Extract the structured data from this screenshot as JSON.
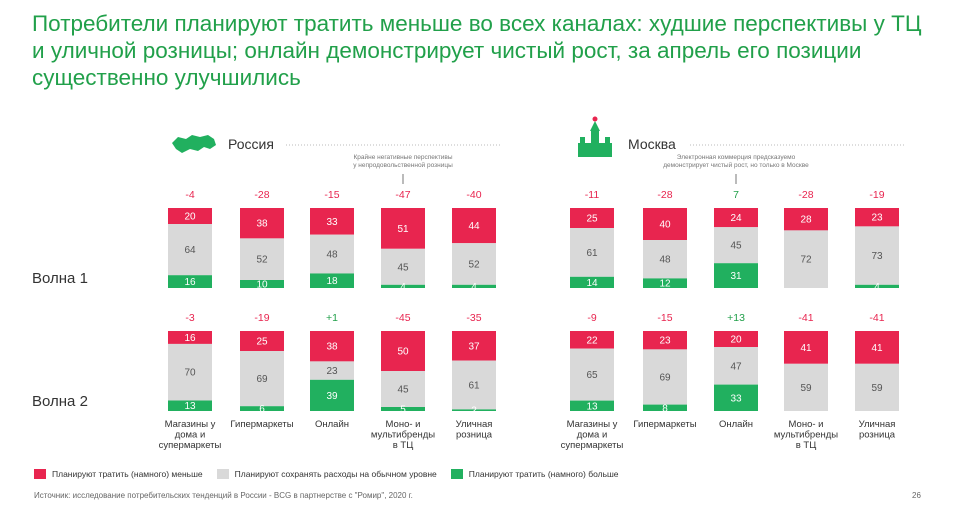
{
  "title": "Потребители планируют тратить меньше во всех каналах: худшие перспективы у ТЦ и уличной розницы; онлайн демонстрирует чистый рост, за апрель его позиции существенно улучшились",
  "colors": {
    "less": "#e8254f",
    "same": "#d9d9d9",
    "more": "#21b05f",
    "title": "#21a04a"
  },
  "icons": {
    "russia": "russia-map-icon",
    "moscow": "kremlin-icon"
  },
  "legend": [
    {
      "key": "less",
      "label": "Планируют тратить (намного) меньше"
    },
    {
      "key": "same",
      "label": "Планируют сохранять расходы на обычном уровне"
    },
    {
      "key": "more",
      "label": "Планируют тратить (намного) больше"
    }
  ],
  "source": "Источник: исследование потребительских тенденций в России - BCG в партнерстве с \"Ромир\", 2020 г.",
  "page_number": "26",
  "chart_data": {
    "type": "bar",
    "stacked": true,
    "categories": [
      "Магазины у дома и супермаркеты",
      "Гипермаркеты",
      "Онлайн",
      "Моно- и мультибренды в ТЦ",
      "Уличная розница"
    ],
    "category_lines": [
      [
        "Магазины у",
        "дома и",
        "супермаркеты"
      ],
      [
        "Гипермаркеты"
      ],
      [
        "Онлайн"
      ],
      [
        "Моно- и",
        "мультибренды",
        "в ТЦ"
      ],
      [
        "Уличная",
        "розница"
      ]
    ],
    "waves": [
      "Волна 1",
      "Волна 2"
    ],
    "regions": [
      {
        "name": "Россия",
        "annotation": {
          "lines": [
            "Крайне негативные перспективы",
            "у непродовольственной розницы"
          ],
          "category_index": 3
        },
        "waves": [
          {
            "deltas": [
              "-4",
              "-28",
              "-15",
              "-47",
              "-40"
            ],
            "less": [
              20,
              38,
              33,
              51,
              44
            ],
            "same": [
              64,
              52,
              48,
              45,
              52
            ],
            "more": [
              16,
              10,
              18,
              4,
              4
            ]
          },
          {
            "deltas": [
              "-3",
              "-19",
              "+1",
              "-45",
              "-35"
            ],
            "less": [
              16,
              25,
              38,
              50,
              37
            ],
            "same": [
              70,
              69,
              23,
              45,
              61
            ],
            "more": [
              13,
              6,
              39,
              5,
              2
            ]
          }
        ]
      },
      {
        "name": "Москва",
        "annotation": {
          "lines": [
            "Электронная коммерция предсказуемо",
            "демонстрирует чистый рост, но только в Москве"
          ],
          "category_index": 2
        },
        "waves": [
          {
            "deltas": [
              "-11",
              "-28",
              "7",
              "-28",
              "-19"
            ],
            "less": [
              25,
              40,
              24,
              28,
              23
            ],
            "same": [
              61,
              48,
              45,
              72,
              73
            ],
            "more": [
              14,
              12,
              31,
              null,
              4
            ]
          },
          {
            "deltas": [
              "-9",
              "-15",
              "+13",
              "-41",
              "-41"
            ],
            "less": [
              22,
              23,
              20,
              41,
              41
            ],
            "same": [
              65,
              69,
              47,
              59,
              59
            ],
            "more": [
              13,
              8,
              33,
              null,
              null
            ]
          }
        ]
      }
    ]
  }
}
